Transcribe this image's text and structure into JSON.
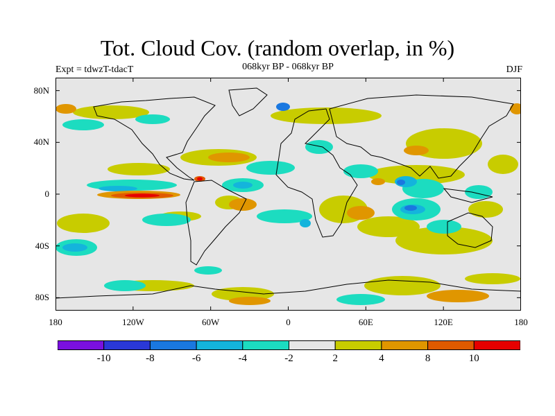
{
  "title": "Tot. Cloud Cov. (random overlap, in %)",
  "subtitle": "068kyr BP - 068kyr BP",
  "left_header": "Expt = tdwzT-tdacT",
  "right_header": "DJF",
  "map": {
    "projection": "cylindrical-equidistant",
    "lon_range": [
      -180,
      180
    ],
    "lat_range": [
      -90,
      90
    ],
    "background_color": "#e6e6e6",
    "y_ticks": [
      {
        "lat": 80,
        "label": "80N"
      },
      {
        "lat": 40,
        "label": "40N"
      },
      {
        "lat": 0,
        "label": "0"
      },
      {
        "lat": -40,
        "label": "40S"
      },
      {
        "lat": -80,
        "label": "80S"
      }
    ],
    "x_ticks": [
      {
        "lon": -180,
        "label": "180"
      },
      {
        "lon": -120,
        "label": "120W"
      },
      {
        "lon": -60,
        "label": "60W"
      },
      {
        "lon": 0,
        "label": "0"
      },
      {
        "lon": 60,
        "label": "60E"
      },
      {
        "lon": 120,
        "label": "120E"
      },
      {
        "lon": 180,
        "label": "180"
      }
    ]
  },
  "colorbar": {
    "colors": [
      "#7a10e0",
      "#2a38d8",
      "#1a78e0",
      "#14b4dc",
      "#1cdcc0",
      "#e6e6e6",
      "#c8cc00",
      "#e09600",
      "#e05a00",
      "#e60000"
    ],
    "labels": [
      "-10",
      "-8",
      "-6",
      "-4",
      "-2",
      "2",
      "4",
      "8",
      "10"
    ]
  }
}
